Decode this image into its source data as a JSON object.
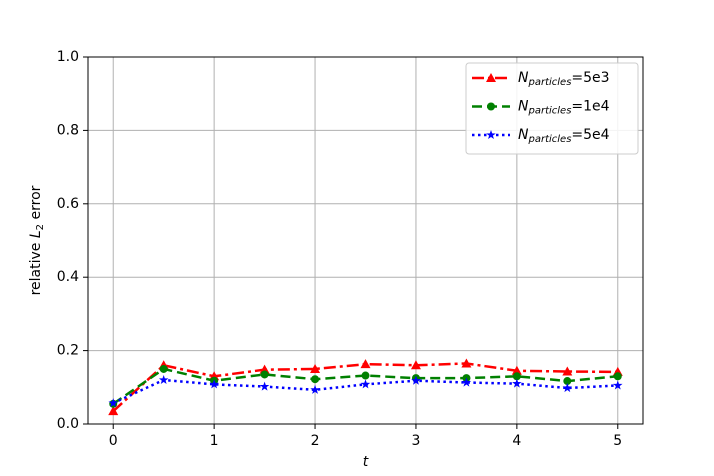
{
  "chart_data": {
    "type": "line",
    "xlabel": "t",
    "ylabel": "relative L2 error",
    "x": [
      0,
      0.5,
      1,
      1.5,
      2,
      2.5,
      3,
      3.5,
      4,
      4.5,
      5
    ],
    "series": [
      {
        "name": "Nparticles=5e3",
        "color": "#ff0000",
        "linestyle": "dashdot",
        "marker": "triangle",
        "values": [
          0.035,
          0.16,
          0.13,
          0.148,
          0.15,
          0.163,
          0.16,
          0.165,
          0.145,
          0.143,
          0.142
        ]
      },
      {
        "name": "Nparticles=1e4",
        "color": "#008000",
        "linestyle": "dashed",
        "marker": "circle",
        "values": [
          0.055,
          0.15,
          0.118,
          0.135,
          0.122,
          0.132,
          0.125,
          0.125,
          0.13,
          0.117,
          0.13
        ]
      },
      {
        "name": "Nparticles=5e4",
        "color": "#0000ff",
        "linestyle": "dotted",
        "marker": "star",
        "values": [
          0.057,
          0.12,
          0.108,
          0.102,
          0.093,
          0.108,
          0.118,
          0.113,
          0.11,
          0.098,
          0.105
        ]
      }
    ],
    "xlim": [
      -0.25,
      5.25
    ],
    "xticks": [
      0,
      1,
      2,
      3,
      4,
      5
    ],
    "ylim": [
      0,
      1
    ],
    "yticks": [
      {
        "value": 0,
        "label": "0.0"
      },
      0.2,
      0.4,
      0.6,
      0.8,
      {
        "value": 1,
        "label": "1.0"
      }
    ],
    "grid": true,
    "legend": "upper right"
  }
}
